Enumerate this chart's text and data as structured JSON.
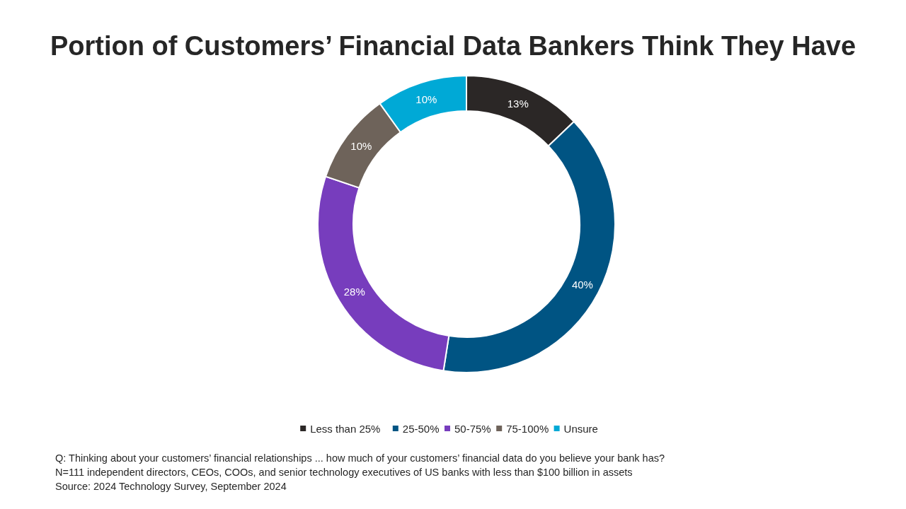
{
  "chart_data": {
    "type": "donut",
    "title": "Portion of Customers’ Financial Data Bankers Think They Have",
    "categories": [
      "Less than 25%",
      "25-50%",
      "50-75%",
      "75-100%",
      "Unsure"
    ],
    "values": [
      13,
      40,
      28,
      10,
      10
    ],
    "colors": [
      "#2b2726",
      "#005483",
      "#773dbd",
      "#6e635a",
      "#00a9d6"
    ],
    "value_labels": [
      "13%",
      "40%",
      "28%",
      "10%",
      "10%"
    ],
    "legend": "bottom",
    "annotations": [
      "Q: Thinking about your customers’ financial relationships ... how much of your customers’ financial data do you believe your bank has?",
      "N=111 independent directors, CEOs, COOs, and senior technology executives of US banks with less than $100 billion in assets",
      "Source: 2024 Technology Survey, September 2024"
    ]
  }
}
